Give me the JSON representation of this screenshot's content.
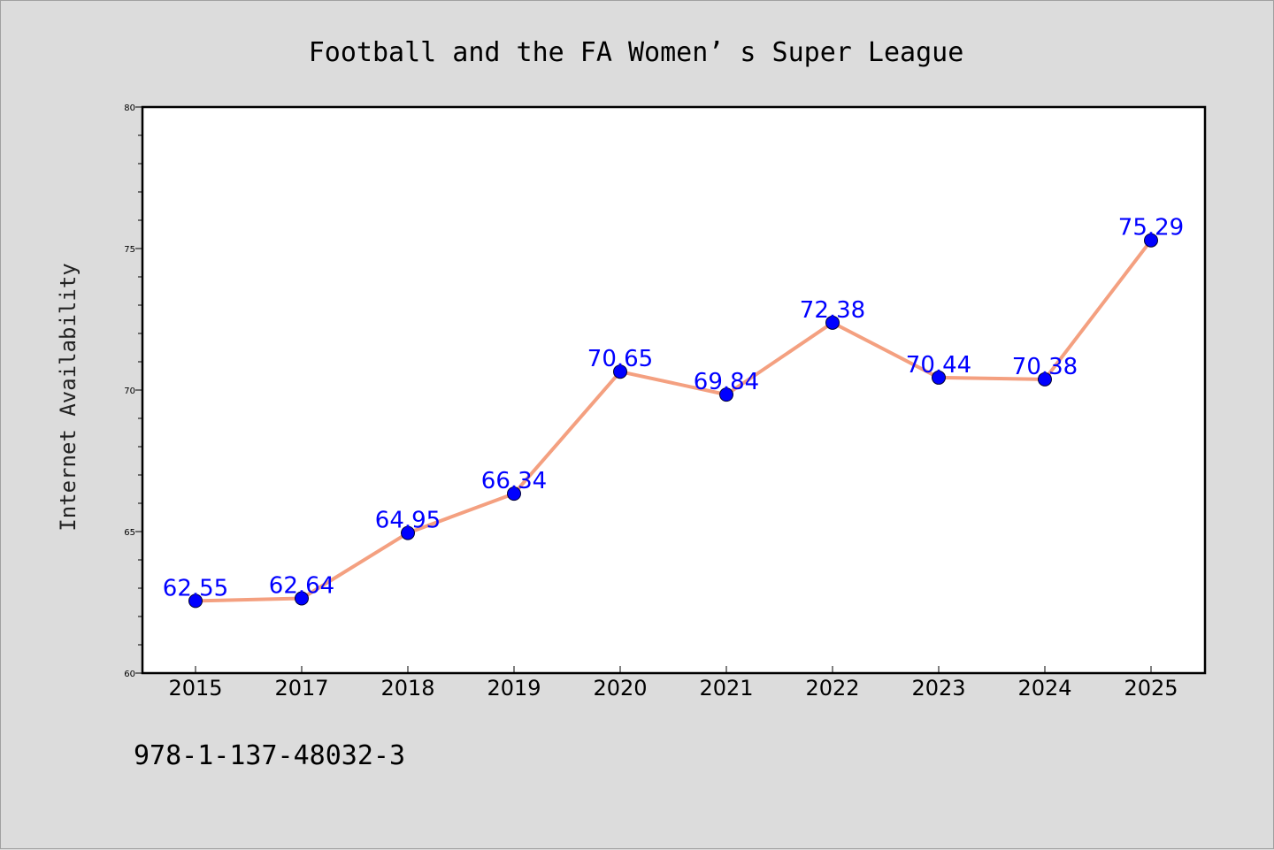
{
  "chart_data": {
    "type": "line",
    "title": "Football and the FA Women’ s Super League",
    "ylabel": "Internet Availability",
    "xlabel": "",
    "categories": [
      "2015",
      "2017",
      "2018",
      "2019",
      "2020",
      "2021",
      "2022",
      "2023",
      "2024",
      "2025"
    ],
    "values": [
      62.55,
      62.64,
      64.95,
      66.34,
      70.65,
      69.84,
      72.38,
      70.44,
      70.38,
      75.29
    ],
    "data_labels": [
      "62.55",
      "62.64",
      "64.95",
      "66.34",
      "70.65",
      "69.84",
      "72.38",
      "70.44",
      "70.38",
      "75.29"
    ],
    "ylim": [
      60,
      80
    ],
    "yticks": [
      "60",
      "65",
      "70",
      "75",
      "80"
    ],
    "grid": false,
    "line_color": "#f4a080",
    "marker_color": "#0000ff",
    "label_color": "#0000ff"
  },
  "footer_code": "978-1-137-48032-3"
}
